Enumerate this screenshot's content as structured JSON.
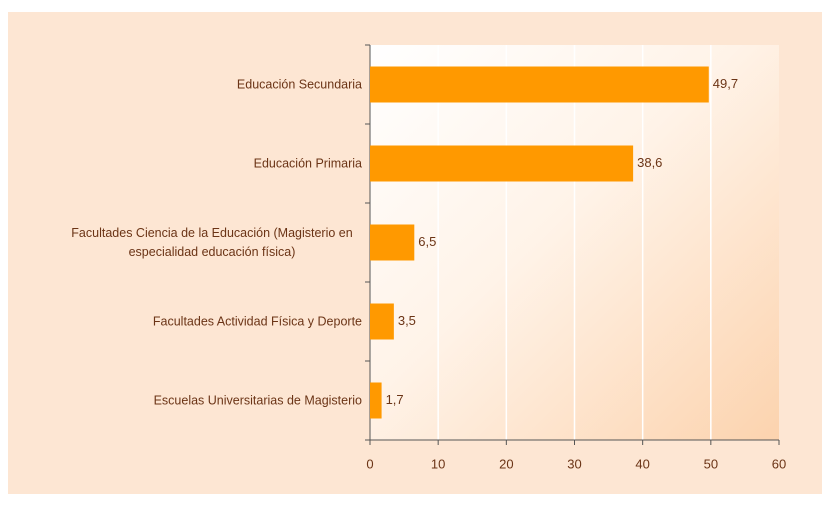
{
  "chart_data": {
    "type": "barh",
    "categories": [
      "Educación Secundaria",
      "Educación Primaria",
      "Facultades Ciencia de la Educación (Magisterio en especialidad educación física)",
      "Facultades Actividad Física y Deporte",
      "Escuelas Universitarias de Magisterio"
    ],
    "values": [
      49.7,
      38.6,
      6.5,
      3.5,
      1.7
    ],
    "value_labels": [
      "49,7",
      "38,6",
      "6,5",
      "3,5",
      "1,7"
    ],
    "color": "#ff9900",
    "xlim": [
      0,
      60
    ],
    "xticks": [
      0,
      10,
      20,
      30,
      40,
      50,
      60
    ],
    "grid": true
  }
}
